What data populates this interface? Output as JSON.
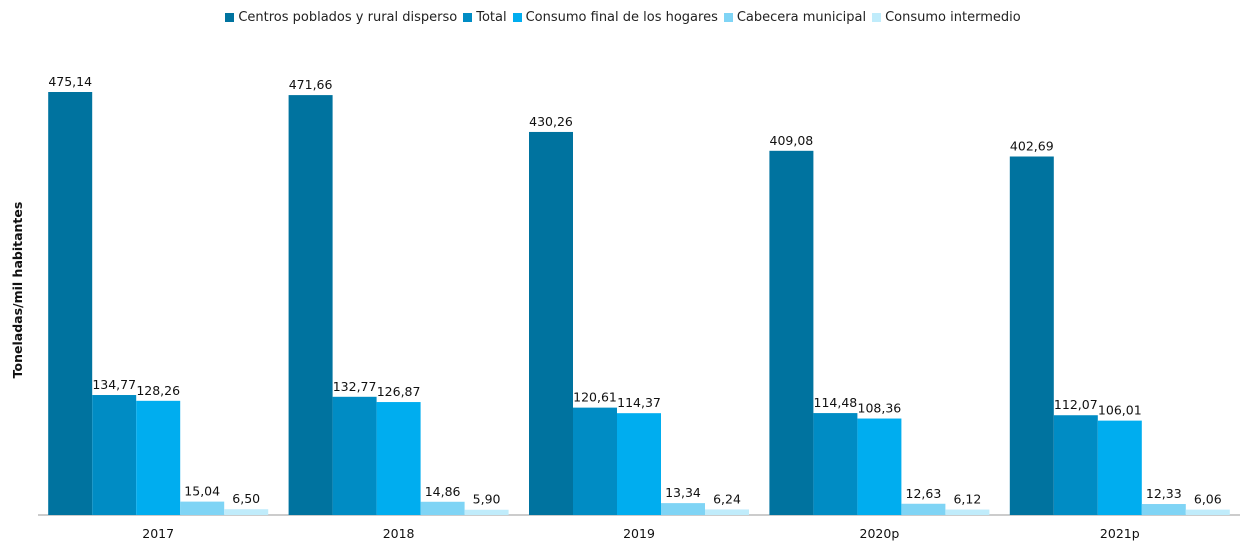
{
  "chart_data": {
    "type": "bar",
    "y_label": "Toneladas/mil habitantes",
    "categories": [
      "2017",
      "2018",
      "2019",
      "2020p",
      "2021p"
    ],
    "series": [
      {
        "name": "Centros poblados y rural disperso",
        "color": "#00739f",
        "values": [
          475.14,
          471.66,
          430.26,
          409.08,
          402.69
        ],
        "value_labels": [
          "475,14",
          "471,66",
          "430,26",
          "409,08",
          "402,69"
        ]
      },
      {
        "name": "Total",
        "color": "#008cc4",
        "values": [
          134.77,
          132.77,
          120.61,
          114.48,
          112.07
        ],
        "value_labels": [
          "134,77",
          "132,77",
          "120,61",
          "114,48",
          "112,07"
        ]
      },
      {
        "name": "Consumo final de los hogares",
        "color": "#00adef",
        "values": [
          128.26,
          126.87,
          114.37,
          108.36,
          106.01
        ],
        "value_labels": [
          "128,26",
          "126,87",
          "114,37",
          "108,36",
          "106,01"
        ]
      },
      {
        "name": "Cabecera municipal",
        "color": "#7fd4f5",
        "values": [
          15.04,
          14.86,
          13.34,
          12.63,
          12.33
        ],
        "value_labels": [
          "15,04",
          "14,86",
          "13,34",
          "12,63",
          "12,33"
        ]
      },
      {
        "name": "Consumo intermedio",
        "color": "#c0ecfb",
        "values": [
          6.5,
          5.9,
          6.24,
          6.12,
          6.06
        ],
        "value_labels": [
          "6,50",
          "5,90",
          "6,24",
          "6,12",
          "6,06"
        ]
      }
    ],
    "legend": "top"
  }
}
